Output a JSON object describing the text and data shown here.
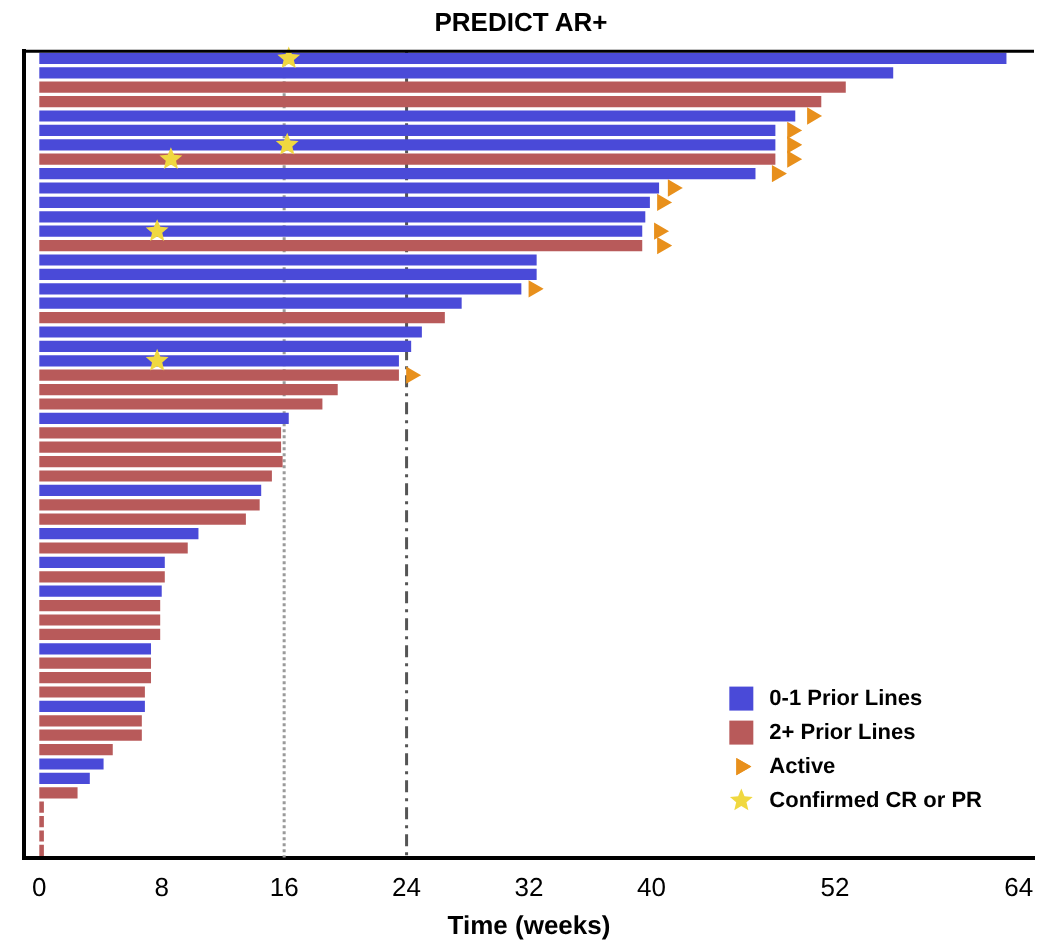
{
  "chart_data": {
    "type": "bar",
    "orientation": "horizontal",
    "title": "PREDICT AR+",
    "xlabel": "Time (weeks)",
    "categories": [
      null,
      null,
      null,
      null,
      null,
      null,
      null,
      null,
      null,
      null,
      null,
      null,
      null,
      null,
      null,
      null,
      null,
      null,
      null,
      null,
      null,
      null,
      null,
      null,
      null,
      null,
      null,
      null,
      null,
      null,
      null,
      null,
      null,
      null,
      null,
      null,
      null,
      null,
      null,
      null,
      null,
      null,
      null,
      null,
      null,
      null,
      null,
      null,
      null,
      null,
      null,
      null,
      null,
      null,
      null,
      null
    ],
    "series": [
      {
        "name": "0-1 Prior Lines",
        "color": "#4a4ad8",
        "values": [
          63.2,
          55.8,
          null,
          null,
          49.4,
          48.1,
          48.1,
          null,
          46.8,
          40.5,
          39.9,
          39.6,
          39.4,
          null,
          32.5,
          32.5,
          31.5,
          27.6,
          null,
          25.0,
          24.3,
          23.5,
          null,
          null,
          null,
          16.3,
          null,
          null,
          null,
          null,
          14.5,
          null,
          null,
          10.4,
          null,
          8.2,
          null,
          8.0,
          null,
          null,
          null,
          7.3,
          null,
          null,
          null,
          6.9,
          null,
          null,
          null,
          4.2,
          3.3,
          null,
          null,
          null,
          null,
          null
        ]
      },
      {
        "name": "2+ Prior Lines",
        "color": "#b85a5a",
        "values": [
          null,
          null,
          52.7,
          51.1,
          null,
          null,
          null,
          48.1,
          null,
          null,
          null,
          null,
          null,
          39.4,
          null,
          null,
          null,
          null,
          26.5,
          null,
          null,
          null,
          23.5,
          19.5,
          18.5,
          null,
          15.8,
          15.8,
          15.9,
          15.2,
          null,
          14.4,
          13.5,
          null,
          9.7,
          null,
          8.2,
          null,
          7.9,
          7.9,
          7.9,
          null,
          7.3,
          7.3,
          6.9,
          null,
          6.7,
          6.7,
          4.8,
          null,
          null,
          2.5,
          0.3,
          0.3,
          0.3,
          0.3
        ]
      },
      {
        "name": "Active",
        "type": "scatter",
        "marker": "triangle",
        "color": "#e8901c",
        "values": [
          null,
          null,
          null,
          null,
          50.5,
          49.2,
          49.2,
          49.2,
          48.2,
          41.4,
          40.7,
          null,
          40.5,
          40.7,
          null,
          null,
          32.3,
          null,
          null,
          null,
          null,
          null,
          24.3,
          null,
          null,
          null,
          null,
          null,
          null,
          null,
          null,
          null,
          null,
          null,
          null,
          null,
          null,
          null,
          null,
          null,
          null,
          null,
          null,
          null,
          null,
          null,
          null,
          null,
          null,
          null,
          null,
          null,
          null,
          null,
          null,
          null
        ]
      },
      {
        "name": "Confirmed CR or PR",
        "type": "scatter",
        "marker": "star",
        "color": "#f0d840",
        "values": [
          16.3,
          null,
          null,
          null,
          null,
          null,
          16.2,
          8.6,
          null,
          null,
          null,
          null,
          7.7,
          null,
          null,
          null,
          null,
          null,
          null,
          null,
          null,
          7.7,
          null,
          null,
          null,
          null,
          null,
          null,
          null,
          null,
          null,
          null,
          null,
          null,
          null,
          null,
          null,
          null,
          null,
          null,
          null,
          null,
          null,
          null,
          null,
          null,
          null,
          null,
          null,
          null,
          null,
          null,
          null,
          null,
          null,
          null
        ]
      }
    ],
    "xlim": [
      -1,
      65
    ],
    "xticks": [
      0,
      8,
      16,
      24,
      32,
      40,
      52,
      64
    ],
    "ref_lines": [
      {
        "axis": "x",
        "value": 16,
        "color": "#9a9a9a",
        "line_style": "dotted"
      },
      {
        "axis": "x",
        "value": 24,
        "color": "#555555",
        "line_style": "dashed"
      }
    ],
    "legend": "bottom right"
  }
}
